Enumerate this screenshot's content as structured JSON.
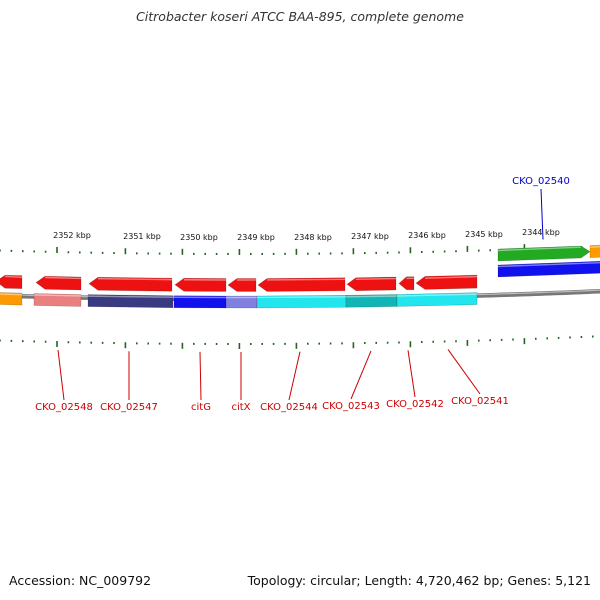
{
  "title": "Citrobacter koseri ATCC BAA-895, complete genome",
  "footer": {
    "accession": "Accession: NC_009792",
    "summary": "Topology: circular; Length: 4,720,462 bp; Genes: 5,121"
  },
  "colors": {
    "reverse_gene": "#ee1111",
    "forward_gene": "#22aa22",
    "backbone": "#888888",
    "tick": "#226622",
    "label_reverse": "#cc0000",
    "label_forward": "#0000cc",
    "cyan": "#22e5ee",
    "blue": "#1111ee",
    "navy": "#3a3a80",
    "pink": "#e88080",
    "orange": "#ff9900",
    "teal": "#11b5b5"
  },
  "ruler": {
    "unit": "kbp",
    "major_ticks": [
      "2352 kbp",
      "2351 kbp",
      "2350 kbp",
      "2349 kbp",
      "2348 kbp",
      "2347 kbp",
      "2346 kbp",
      "2345 kbp",
      "2344 kbp"
    ]
  },
  "genes": [
    {
      "name": "CKO_02548",
      "strand": "reverse",
      "label_color": "label_reverse"
    },
    {
      "name": "CKO_02547",
      "strand": "reverse",
      "label_color": "label_reverse"
    },
    {
      "name": "citG",
      "strand": "reverse",
      "label_color": "label_reverse"
    },
    {
      "name": "citX",
      "strand": "reverse",
      "label_color": "label_reverse"
    },
    {
      "name": "CKO_02544",
      "strand": "reverse",
      "label_color": "label_reverse"
    },
    {
      "name": "CKO_02543",
      "strand": "reverse",
      "label_color": "label_reverse"
    },
    {
      "name": "CKO_02542",
      "strand": "reverse",
      "label_color": "label_reverse"
    },
    {
      "name": "CKO_02541",
      "strand": "reverse",
      "label_color": "label_reverse"
    },
    {
      "name": "CKO_02540",
      "strand": "forward",
      "label_color": "label_forward"
    }
  ]
}
